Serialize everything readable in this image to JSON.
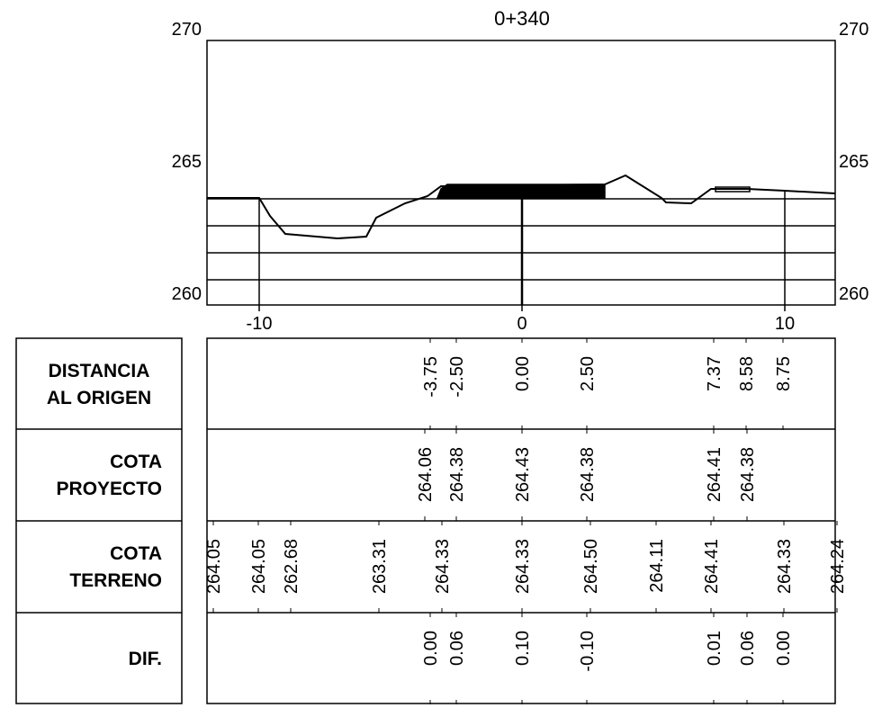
{
  "title": "0+340",
  "y_axis": {
    "left_ticks": [
      "270",
      "265",
      "260"
    ],
    "right_ticks": [
      "270",
      "265",
      "260"
    ]
  },
  "x_axis": {
    "ticks": [
      "-10",
      "0",
      "10"
    ]
  },
  "table": {
    "rows": [
      {
        "label": [
          "DISTANCIA",
          "AL ORIGEN"
        ],
        "values": [
          "-3.75",
          "-2.50",
          "0.00",
          "2.50",
          "7.37",
          "8.58",
          "8.75"
        ]
      },
      {
        "label": [
          "COTA",
          "PROYECTO"
        ],
        "values": [
          "264.06",
          "264.38",
          "264.43",
          "264.38",
          "264.41",
          "264.38"
        ]
      },
      {
        "label": [
          "COTA",
          "TERRENO"
        ],
        "values": [
          "264.05",
          "264.05",
          "262.68",
          "263.31",
          "264.33",
          "264.33",
          "264.50",
          "264.11",
          "264.41",
          "264.33",
          "264.24"
        ]
      },
      {
        "label": [
          "DIF."
        ],
        "values": [
          "0.00",
          "0.06",
          "0.10",
          "-0.10",
          "0.01",
          "0.06",
          "0.00"
        ]
      }
    ]
  }
}
